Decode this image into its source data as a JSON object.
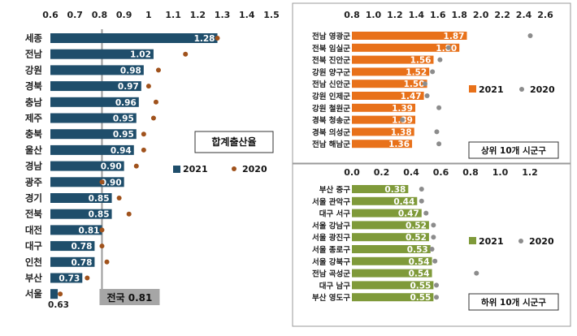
{
  "chart_data": [
    {
      "type": "bar",
      "orientation": "horizontal",
      "title": "",
      "xlim": [
        0.6,
        1.5
      ],
      "xticks": [
        "0.6",
        "0.7",
        "0.8",
        "0.9",
        "1",
        "1.1",
        "1.2",
        "1.3",
        "1.4",
        "1.5"
      ],
      "categories": [
        "세종",
        "전남",
        "강원",
        "경북",
        "충남",
        "제주",
        "충북",
        "울산",
        "경남",
        "광주",
        "경기",
        "전북",
        "대전",
        "대구",
        "인천",
        "부산",
        "서울"
      ],
      "series": [
        {
          "name": "2021",
          "color": "#1f4e6b",
          "values": [
            1.28,
            1.02,
            0.98,
            0.97,
            0.96,
            0.95,
            0.95,
            0.94,
            0.9,
            0.9,
            0.85,
            0.85,
            0.81,
            0.78,
            0.78,
            0.73,
            0.63
          ],
          "labels": [
            "1.28",
            "1.02",
            "0.98",
            "0.97",
            "0.96",
            "0.95",
            "0.95",
            "0.94",
            "0.90",
            "0.90",
            "0.85",
            "0.85",
            "0.81",
            "0.78",
            "0.78",
            "0.73",
            "0.63"
          ]
        },
        {
          "name": "2020",
          "color": "#a0521c",
          "marker": "dot",
          "values": [
            1.28,
            1.15,
            1.04,
            1.0,
            1.03,
            1.02,
            0.98,
            0.98,
            0.95,
            0.81,
            0.88,
            0.92,
            0.81,
            0.81,
            0.83,
            0.75,
            0.64
          ]
        }
      ],
      "legend_title": "합계출산율",
      "reference_line": {
        "value": 0.81,
        "label": "전국 0.81"
      }
    },
    {
      "type": "bar",
      "orientation": "horizontal",
      "xlim": [
        0.8,
        2.6
      ],
      "xticks": [
        "0.8",
        "1.0",
        "1.2",
        "1.4",
        "1.6",
        "1.8",
        "2.0",
        "2.2",
        "2.4",
        "2.6"
      ],
      "categories": [
        "전남 영광군",
        "전북 임실군",
        "전북 진안군",
        "강원 양구군",
        "전남 신안군",
        "강원 인제군",
        "강원 철원군",
        "경북 청송군",
        "경북 의성군",
        "전남 해남군"
      ],
      "series": [
        {
          "name": "2021",
          "color": "#e8711a",
          "values": [
            1.87,
            1.8,
            1.56,
            1.52,
            1.5,
            1.47,
            1.39,
            1.39,
            1.38,
            1.36
          ],
          "labels": [
            "1.87",
            "1.80",
            "1.56",
            "1.52",
            "1.50",
            "1.47",
            "1.39",
            "1.39",
            "1.38",
            "1.36"
          ]
        },
        {
          "name": "2020",
          "color": "#8c8c8c",
          "marker": "dot",
          "values": [
            2.46,
            1.7,
            1.62,
            1.55,
            1.48,
            1.5,
            1.61,
            1.27,
            1.59,
            1.61
          ]
        }
      ],
      "legend_title": "상위 10개 시군구"
    },
    {
      "type": "bar",
      "orientation": "horizontal",
      "xlim": [
        0,
        1.2
      ],
      "xticks": [
        "0.0",
        "0.2",
        "0.4",
        "0.6",
        "0.8",
        "1.0",
        "1.2"
      ],
      "categories": [
        "부산 중구",
        "서울 관악구",
        "대구 서구",
        "서울 강남구",
        "서울 광진구",
        "서울 종로구",
        "서울 강북구",
        "전남 곡성군",
        "대구 남구",
        "부산 영도구"
      ],
      "series": [
        {
          "name": "2021",
          "color": "#7f9a3a",
          "values": [
            0.38,
            0.44,
            0.47,
            0.52,
            0.52,
            0.53,
            0.54,
            0.54,
            0.55,
            0.55
          ],
          "labels": [
            "0.38",
            "0.44",
            "0.47",
            "0.52",
            "0.52",
            "0.53",
            "0.54",
            "0.54",
            "0.55",
            "0.55"
          ]
        },
        {
          "name": "2020",
          "color": "#8c8c8c",
          "marker": "dot",
          "values": [
            0.47,
            0.47,
            0.5,
            0.55,
            0.55,
            0.54,
            0.56,
            0.84,
            0.57,
            0.57
          ]
        }
      ],
      "legend_title": "하위 10개 시군구"
    }
  ]
}
